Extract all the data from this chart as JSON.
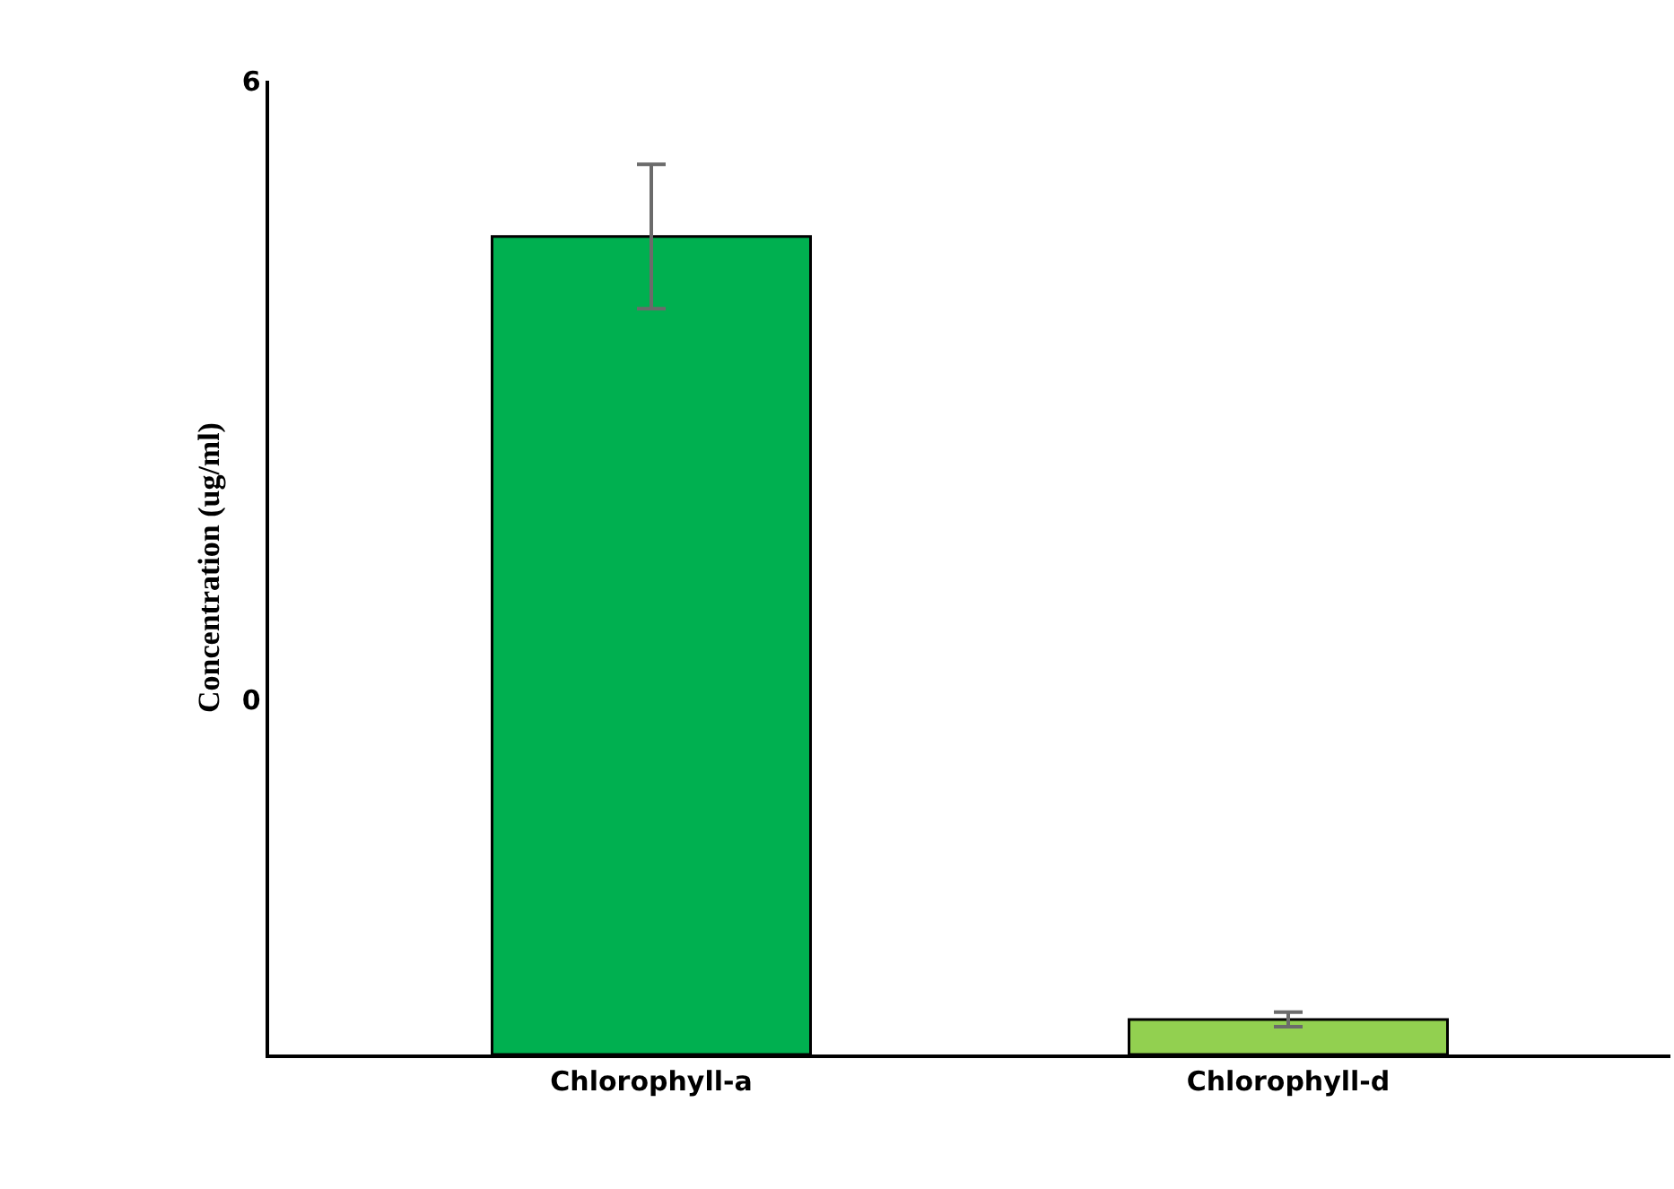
{
  "chart_data": {
    "type": "bar",
    "ylabel": "Concentration (ug/ml)",
    "categories": [
      "Chlorophyll-a",
      "Chlorophyll-d"
    ],
    "values": [
      7.93,
      0.34
    ],
    "base": [
      -3.44,
      -3.44
    ],
    "colors": [
      "#00b050",
      "#92d050"
    ],
    "errors": [
      0.7,
      0.07
    ],
    "ylim": [
      -3.44,
      6
    ],
    "yticks": [
      6,
      0
    ]
  }
}
